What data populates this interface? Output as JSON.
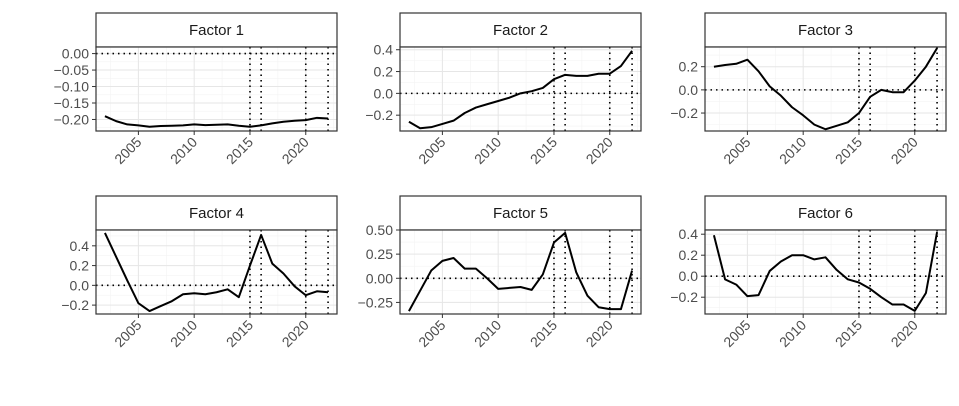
{
  "chart_data": [
    {
      "type": "line",
      "title": "Factor 1",
      "x": [
        2002,
        2003,
        2004,
        2005,
        2006,
        2007,
        2008,
        2009,
        2010,
        2011,
        2012,
        2013,
        2014,
        2015,
        2016,
        2017,
        2018,
        2019,
        2020,
        2021,
        2022
      ],
      "values": [
        -0.19,
        -0.205,
        -0.215,
        -0.218,
        -0.222,
        -0.22,
        -0.219,
        -0.218,
        -0.215,
        -0.217,
        -0.216,
        -0.215,
        -0.219,
        -0.222,
        -0.218,
        -0.212,
        -0.207,
        -0.204,
        -0.202,
        -0.195,
        -0.197
      ],
      "xlim": [
        2001.2,
        2022.8
      ],
      "ylim": [
        -0.235,
        0.02
      ],
      "xticks": [
        2005,
        2010,
        2015,
        2020
      ],
      "xtick_labels": [
        "2005",
        "2010",
        "2015",
        "2020"
      ],
      "yticks": [
        0,
        -0.05,
        -0.1,
        -0.15,
        -0.2
      ],
      "ytick_labels": [
        "0.00",
        "−0.05",
        "−0.10",
        "−0.15",
        "−0.20"
      ],
      "hline": 0,
      "vlines": [
        2015,
        2016,
        2020,
        2022
      ]
    },
    {
      "type": "line",
      "title": "Factor 2",
      "x": [
        2002,
        2003,
        2004,
        2005,
        2006,
        2007,
        2008,
        2009,
        2010,
        2011,
        2012,
        2013,
        2014,
        2015,
        2016,
        2017,
        2018,
        2019,
        2020,
        2021,
        2022
      ],
      "values": [
        -0.26,
        -0.32,
        -0.31,
        -0.28,
        -0.25,
        -0.18,
        -0.13,
        -0.1,
        -0.07,
        -0.04,
        0.0,
        0.02,
        0.05,
        0.13,
        0.17,
        0.16,
        0.16,
        0.18,
        0.18,
        0.25,
        0.39
      ],
      "xlim": [
        2001.2,
        2022.8
      ],
      "ylim": [
        -0.345,
        0.425
      ],
      "xticks": [
        2005,
        2010,
        2015,
        2020
      ],
      "xtick_labels": [
        "2005",
        "2010",
        "2015",
        "2020"
      ],
      "yticks": [
        0.4,
        0.2,
        0,
        -0.2
      ],
      "ytick_labels": [
        "0.4",
        "0.2",
        "0.0",
        "−0.2"
      ],
      "hline": 0,
      "vlines": [
        2015,
        2016,
        2020,
        2022
      ]
    },
    {
      "type": "line",
      "title": "Factor 3",
      "x": [
        2002,
        2003,
        2004,
        2005,
        2006,
        2007,
        2008,
        2009,
        2010,
        2011,
        2012,
        2013,
        2014,
        2015,
        2016,
        2017,
        2018,
        2019,
        2020,
        2021,
        2022
      ],
      "values": [
        0.2,
        0.215,
        0.225,
        0.26,
        0.16,
        0.03,
        -0.05,
        -0.15,
        -0.22,
        -0.3,
        -0.34,
        -0.31,
        -0.28,
        -0.2,
        -0.06,
        0.0,
        -0.02,
        -0.02,
        0.08,
        0.2,
        0.36
      ],
      "xlim": [
        2001.2,
        2022.8
      ],
      "ylim": [
        -0.355,
        0.37
      ],
      "xticks": [
        2005,
        2010,
        2015,
        2020
      ],
      "xtick_labels": [
        "2005",
        "2010",
        "2015",
        "2020"
      ],
      "yticks": [
        0.2,
        0,
        -0.2
      ],
      "ytick_labels": [
        "0.2",
        "0.0",
        "−0.2"
      ],
      "hline": 0,
      "vlines": [
        2015,
        2016,
        2020,
        2022
      ]
    },
    {
      "type": "line",
      "title": "Factor 4",
      "x": [
        2002,
        2003,
        2004,
        2005,
        2006,
        2007,
        2008,
        2009,
        2010,
        2011,
        2012,
        2013,
        2014,
        2015,
        2016,
        2017,
        2018,
        2019,
        2020,
        2021,
        2022
      ],
      "values": [
        0.53,
        0.29,
        0.05,
        -0.18,
        -0.26,
        -0.21,
        -0.16,
        -0.09,
        -0.08,
        -0.09,
        -0.07,
        -0.04,
        -0.12,
        0.2,
        0.51,
        0.22,
        0.12,
        -0.01,
        -0.1,
        -0.06,
        -0.07
      ],
      "xlim": [
        2001.2,
        2022.8
      ],
      "ylim": [
        -0.29,
        0.56
      ],
      "xticks": [
        2005,
        2010,
        2015,
        2020
      ],
      "xtick_labels": [
        "2005",
        "2010",
        "2015",
        "2020"
      ],
      "yticks": [
        0.4,
        0.2,
        0,
        -0.2
      ],
      "ytick_labels": [
        "0.4",
        "0.2",
        "0.0",
        "−0.2"
      ],
      "hline": 0,
      "vlines": [
        2015,
        2016,
        2020,
        2022
      ]
    },
    {
      "type": "line",
      "title": "Factor 5",
      "x": [
        2002,
        2003,
        2004,
        2005,
        2006,
        2007,
        2008,
        2009,
        2010,
        2011,
        2012,
        2013,
        2014,
        2015,
        2016,
        2017,
        2018,
        2019,
        2020,
        2021,
        2022
      ],
      "values": [
        -0.34,
        -0.13,
        0.08,
        0.18,
        0.21,
        0.1,
        0.1,
        0.0,
        -0.11,
        -0.1,
        -0.09,
        -0.12,
        0.04,
        0.37,
        0.47,
        0.06,
        -0.18,
        -0.3,
        -0.32,
        -0.32,
        0.08
      ],
      "xlim": [
        2001.2,
        2022.8
      ],
      "ylim": [
        -0.37,
        0.5
      ],
      "xticks": [
        2005,
        2010,
        2015,
        2020
      ],
      "xtick_labels": [
        "2005",
        "2010",
        "2015",
        "2020"
      ],
      "yticks": [
        0.5,
        0.25,
        0,
        -0.25
      ],
      "ytick_labels": [
        "0.50",
        "0.25",
        "0.00",
        "−0.25"
      ],
      "hline": 0,
      "vlines": [
        2015,
        2016,
        2020,
        2022
      ]
    },
    {
      "type": "line",
      "title": "Factor 6",
      "x": [
        2002,
        2003,
        2004,
        2005,
        2006,
        2007,
        2008,
        2009,
        2010,
        2011,
        2012,
        2013,
        2014,
        2015,
        2016,
        2017,
        2018,
        2019,
        2020,
        2021,
        2022
      ],
      "values": [
        0.39,
        -0.03,
        -0.08,
        -0.19,
        -0.18,
        0.05,
        0.14,
        0.2,
        0.2,
        0.16,
        0.18,
        0.06,
        -0.03,
        -0.06,
        -0.12,
        -0.2,
        -0.27,
        -0.27,
        -0.33,
        -0.16,
        0.42
      ],
      "xlim": [
        2001.2,
        2022.8
      ],
      "ylim": [
        -0.36,
        0.44
      ],
      "xticks": [
        2005,
        2010,
        2015,
        2020
      ],
      "xtick_labels": [
        "2005",
        "2010",
        "2015",
        "2020"
      ],
      "yticks": [
        0.4,
        0.2,
        0,
        -0.2
      ],
      "ytick_labels": [
        "0.4",
        "0.2",
        "0.0",
        "−0.2"
      ],
      "hline": 0,
      "vlines": [
        2015,
        2016,
        2020,
        2022
      ]
    }
  ]
}
